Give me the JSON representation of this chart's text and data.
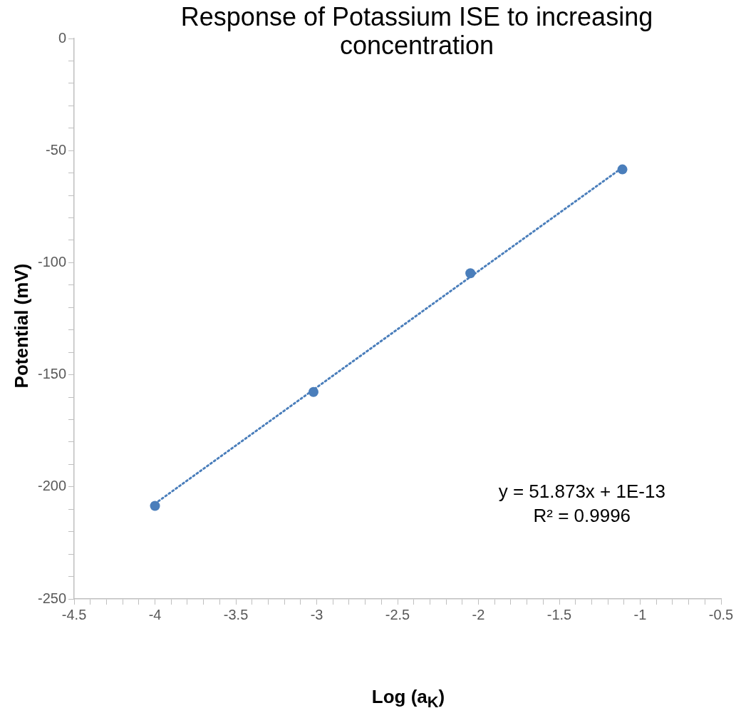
{
  "chart_data": {
    "type": "scatter",
    "title": "Response of Potassium ISE to increasing concentration",
    "xlabel": "Log (a$_{K}$)",
    "ylabel": "Potential (mV)",
    "annotations": [
      "y = 51.873x + 1E-13",
      "R² = 0.9996"
    ],
    "x": [
      -4.0,
      -3.02,
      -2.05,
      -1.11
    ],
    "series": [
      {
        "type": "scatter",
        "color": "#4a7ebb",
        "marker": "circle",
        "values": [
          -208.5,
          -157.7,
          -104.7,
          -58.4
        ]
      },
      {
        "type": "line",
        "color": "#4a7ebb",
        "marker": "none",
        "line_style": "dotted",
        "x": [
          -4.0,
          -1.11
        ],
        "values": [
          -207.5,
          -57.6
        ]
      }
    ],
    "xlim": [
      -4.5,
      -0.5
    ],
    "xticks": [
      -4.5,
      {
        "value": -4.4,
        "label": null
      },
      {
        "value": -4.3,
        "label": null
      },
      {
        "value": -4.2,
        "label": null
      },
      {
        "value": -4.1,
        "label": null
      },
      -4,
      {
        "value": -3.9,
        "label": null
      },
      {
        "value": -3.8,
        "label": null
      },
      {
        "value": -3.7,
        "label": null
      },
      {
        "value": -3.6,
        "label": null
      },
      -3.5,
      {
        "value": -3.4,
        "label": null
      },
      {
        "value": -3.3,
        "label": null
      },
      {
        "value": -3.2,
        "label": null
      },
      {
        "value": -3.1,
        "label": null
      },
      -3,
      {
        "value": -2.9,
        "label": null
      },
      {
        "value": -2.8,
        "label": null
      },
      {
        "value": -2.7,
        "label": null
      },
      {
        "value": -2.6,
        "label": null
      },
      -2.5,
      {
        "value": -2.4,
        "label": null
      },
      {
        "value": -2.3,
        "label": null
      },
      {
        "value": -2.2,
        "label": null
      },
      {
        "value": -2.1,
        "label": null
      },
      -2,
      {
        "value": -1.9,
        "label": null
      },
      {
        "value": -1.8,
        "label": null
      },
      {
        "value": -1.7,
        "label": null
      },
      {
        "value": -1.6,
        "label": null
      },
      -1.5,
      {
        "value": -1.4,
        "label": null
      },
      {
        "value": -1.3,
        "label": null
      },
      {
        "value": -1.2,
        "label": null
      },
      {
        "value": -1.1,
        "label": null
      },
      -1,
      {
        "value": -0.9,
        "label": null
      },
      {
        "value": -0.8,
        "label": null
      },
      {
        "value": -0.7,
        "label": null
      },
      {
        "value": -0.6,
        "label": null
      },
      -0.5
    ],
    "ylim": [
      -250,
      0
    ],
    "yticks": [
      -250,
      {
        "value": -240,
        "label": null
      },
      {
        "value": -230,
        "label": null
      },
      {
        "value": -220,
        "label": null
      },
      {
        "value": -210,
        "label": null
      },
      -200,
      {
        "value": -190,
        "label": null
      },
      {
        "value": -180,
        "label": null
      },
      {
        "value": -170,
        "label": null
      },
      {
        "value": -160,
        "label": null
      },
      -150,
      {
        "value": -140,
        "label": null
      },
      {
        "value": -130,
        "label": null
      },
      {
        "value": -120,
        "label": null
      },
      {
        "value": -110,
        "label": null
      },
      -100,
      {
        "value": -90,
        "label": null
      },
      {
        "value": -80,
        "label": null
      },
      {
        "value": -70,
        "label": null
      },
      {
        "value": -60,
        "label": null
      },
      -50,
      {
        "value": -40,
        "label": null
      },
      {
        "value": -30,
        "label": null
      },
      {
        "value": -20,
        "label": null
      },
      {
        "value": -10,
        "label": null
      },
      0
    ],
    "grid": false,
    "legend": false
  }
}
